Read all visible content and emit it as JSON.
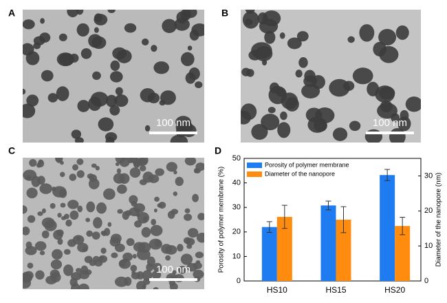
{
  "panel_labels": [
    "A",
    "B",
    "C",
    "D"
  ],
  "scale_bars": [
    "100 nm",
    "100 nm",
    "100 nm"
  ],
  "chart_data": {
    "type": "bar",
    "categories": [
      "HS10",
      "HS15",
      "HS20"
    ],
    "y_label": "Porosity of polymer membrane (%)",
    "y2_label": "Diameter of the nanopore (nm)",
    "ylim": [
      0,
      50
    ],
    "yticks": [
      0,
      10,
      20,
      30,
      40,
      50
    ],
    "y2lim": [
      0,
      35
    ],
    "y2ticks": [
      0,
      10,
      20,
      30
    ],
    "legend": "upper left",
    "series": [
      {
        "name": "Porosity of polymer membrane",
        "color": "#1e7bf0",
        "values": [
          22.0,
          30.8,
          43.2
        ],
        "errors": [
          2.2,
          1.8,
          2.3
        ]
      },
      {
        "name": "Diameter of the nanopore",
        "color": "#ff8c0f",
        "axis": "y2",
        "values": [
          18.3,
          17.5,
          15.7
        ],
        "errors": [
          3.3,
          3.7,
          2.5
        ]
      }
    ]
  }
}
